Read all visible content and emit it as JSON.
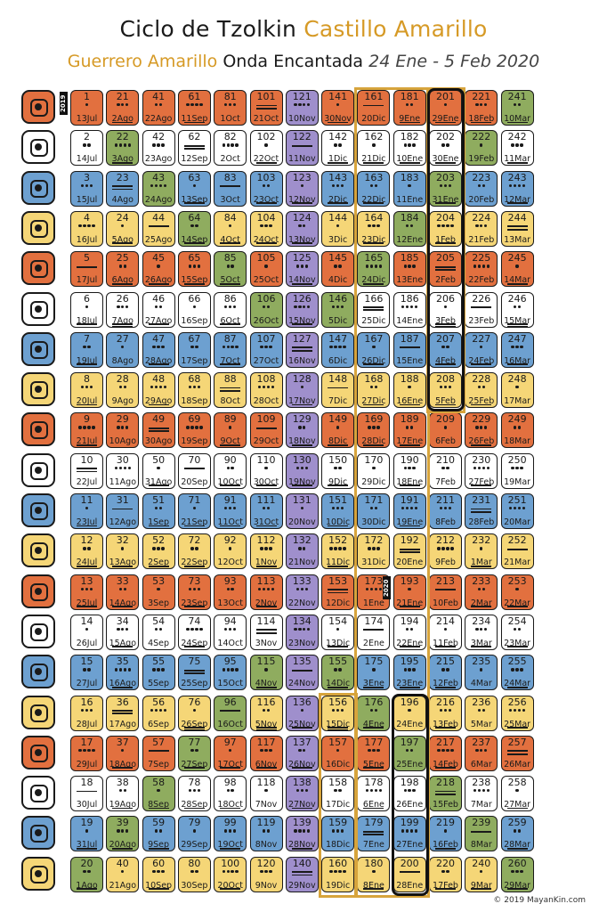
{
  "header": {
    "title_part1": "Ciclo de Tzolkin",
    "title_part2": "Castillo Amarillo",
    "subtitle_part1": "Guerrero Amarillo",
    "subtitle_part2": "Onda Encantada",
    "subtitle_dates": "24 Ene - 5 Feb 2020"
  },
  "year_labels": {
    "start": "2019",
    "change": "2020"
  },
  "copyright": "© 2019 MayanKin.com",
  "colors": {
    "red": "#e2703f",
    "white": "#ffffff",
    "blue": "#6da0d0",
    "yellow": "#f5d677",
    "green": "#8fac5f",
    "purple": "#9f8fcc",
    "highlight": "#d7a43c"
  },
  "glyph_colors": [
    "red",
    "white",
    "blue",
    "yellow",
    "red",
    "white",
    "blue",
    "yellow",
    "red",
    "white",
    "blue",
    "yellow",
    "red",
    "white",
    "blue",
    "yellow",
    "red",
    "white",
    "blue",
    "yellow"
  ],
  "dates": [
    [
      "13Jul",
      "2Ago",
      "22Ago",
      "11Sep",
      "1Oct",
      "21Oct",
      "10Nov",
      "30Nov",
      "20Dic",
      "9Ene",
      "29Ene",
      "18Feb",
      "10Mar"
    ],
    [
      "14Jul",
      "3Ago",
      "23Ago",
      "12Sep",
      "2Oct",
      "22Oct",
      "11Nov",
      "1Dic",
      "21Dic",
      "10Ene",
      "30Ene",
      "19Feb",
      "11Mar"
    ],
    [
      "15Jul",
      "4Ago",
      "24Ago",
      "13Sep",
      "3Oct",
      "23Oct",
      "12Nov",
      "2Dic",
      "22Dic",
      "11Ene",
      "31Ene",
      "20Feb",
      "12Mar"
    ],
    [
      "16Jul",
      "5Ago",
      "25Ago",
      "14Sep",
      "4Oct",
      "24Oct",
      "13Nov",
      "3Dic",
      "23Dic",
      "12Ene",
      "1Feb",
      "21Feb",
      "13Mar"
    ],
    [
      "17Jul",
      "6Ago",
      "26Ago",
      "15Sep",
      "5Oct",
      "25Oct",
      "14Nov",
      "4Dic",
      "24Dic",
      "13Ene",
      "2Feb",
      "22Feb",
      "14Mar"
    ],
    [
      "18Jul",
      "7Ago",
      "27Ago",
      "16Sep",
      "6Oct",
      "26Oct",
      "15Nov",
      "5Dic",
      "25Dic",
      "14Ene",
      "3Feb",
      "23Feb",
      "15Mar"
    ],
    [
      "19Jul",
      "8Ago",
      "28Ago",
      "17Sep",
      "7Oct",
      "27Oct",
      "16Nov",
      "6Dic",
      "26Dic",
      "15Ene",
      "4Feb",
      "24Feb",
      "16Mar"
    ],
    [
      "20Jul",
      "9Ago",
      "29Ago",
      "18Sep",
      "8Oct",
      "28Oct",
      "17Nov",
      "7Dic",
      "27Dic",
      "16Ene",
      "5Feb",
      "25Feb",
      "17Mar"
    ],
    [
      "21Jul",
      "10Ago",
      "30Ago",
      "19Sep",
      "9Oct",
      "29Oct",
      "18Nov",
      "8Dic",
      "28Dic",
      "17Ene",
      "6Feb",
      "26Feb",
      "18Mar"
    ],
    [
      "22Jul",
      "11Ago",
      "31Ago",
      "20Sep",
      "10Oct",
      "30Oct",
      "19Nov",
      "9Dic",
      "29Dic",
      "18Ene",
      "7Feb",
      "27Feb",
      "19Mar"
    ],
    [
      "23Jul",
      "12Ago",
      "1Sep",
      "21Sep",
      "11Oct",
      "31Oct",
      "20Nov",
      "10Dic",
      "30Dic",
      "19Ene",
      "8Feb",
      "28Feb",
      "20Mar"
    ],
    [
      "24Jul",
      "13Ago",
      "2Sep",
      "22Sep",
      "12Oct",
      "1Nov",
      "21Nov",
      "11Dic",
      "31Dic",
      "20Ene",
      "9Feb",
      "1Mar",
      "21Mar"
    ],
    [
      "25Jul",
      "14Ago",
      "3Sep",
      "23Sep",
      "13Oct",
      "2Nov",
      "22Nov",
      "12Dic",
      "1Ene",
      "21Ene",
      "10Feb",
      "2Mar",
      "22Mar"
    ],
    [
      "26Jul",
      "15Ago",
      "4Sep",
      "24Sep",
      "14Oct",
      "3Nov",
      "23Nov",
      "13Dic",
      "2Ene",
      "22Ene",
      "11Feb",
      "3Mar",
      "23Mar"
    ],
    [
      "27Jul",
      "16Ago",
      "5Sep",
      "25Sep",
      "15Oct",
      "4Nov",
      "24Nov",
      "14Dic",
      "3Ene",
      "23Ene",
      "12Feb",
      "4Mar",
      "24Mar"
    ],
    [
      "28Jul",
      "17Ago",
      "6Sep",
      "26Sep",
      "16Oct",
      "5Nov",
      "25Nov",
      "15Dic",
      "4Ene",
      "24Ene",
      "13Feb",
      "5Mar",
      "25Mar"
    ],
    [
      "29Jul",
      "18Ago",
      "7Sep",
      "27Sep",
      "17Oct",
      "6Nov",
      "26Nov",
      "16Dic",
      "5Ene",
      "25Ene",
      "14Feb",
      "6Mar",
      "26Mar"
    ],
    [
      "30Jul",
      "19Ago",
      "8Sep",
      "28Sep",
      "18Oct",
      "7Nov",
      "27Nov",
      "17Dic",
      "6Ene",
      "26Ene",
      "15Feb",
      "7Mar",
      "27Mar"
    ],
    [
      "31Jul",
      "20Ago",
      "9Sep",
      "29Sep",
      "19Oct",
      "8Nov",
      "28Nov",
      "18Dic",
      "7Ene",
      "27Ene",
      "16Feb",
      "8Mar",
      "28Mar"
    ],
    [
      "1Ago",
      "21Ago",
      "10Sep",
      "30Sep",
      "20Oct",
      "9Nov",
      "29Nov",
      "19Dic",
      "8Ene",
      "28Ene",
      "17Feb",
      "9Mar",
      "29Mar"
    ]
  ],
  "column_colors": [
    [
      "red",
      "white",
      "blue",
      "yellow",
      "red",
      "white",
      "blue",
      "yellow",
      "red",
      "white",
      "blue",
      "yellow",
      "red",
      "white",
      "blue",
      "yellow",
      "red",
      "white",
      "blue",
      "green"
    ],
    [
      "red",
      "green",
      "blue",
      "yellow",
      "red",
      "white",
      "blue",
      "yellow",
      "red",
      "white",
      "blue",
      "yellow",
      "red",
      "white",
      "blue",
      "yellow",
      "red",
      "white",
      "green",
      "yellow"
    ],
    [
      "red",
      "white",
      "green",
      "yellow",
      "red",
      "white",
      "blue",
      "yellow",
      "red",
      "white",
      "blue",
      "yellow",
      "red",
      "white",
      "blue",
      "yellow",
      "red",
      "green",
      "blue",
      "yellow"
    ],
    [
      "red",
      "white",
      "blue",
      "green",
      "red",
      "white",
      "blue",
      "yellow",
      "red",
      "white",
      "blue",
      "yellow",
      "red",
      "white",
      "blue",
      "yellow",
      "green",
      "white",
      "blue",
      "yellow"
    ],
    [
      "red",
      "white",
      "blue",
      "yellow",
      "green",
      "white",
      "blue",
      "yellow",
      "red",
      "white",
      "blue",
      "yellow",
      "red",
      "white",
      "blue",
      "green",
      "red",
      "white",
      "blue",
      "yellow"
    ],
    [
      "red",
      "white",
      "blue",
      "yellow",
      "red",
      "green",
      "blue",
      "yellow",
      "red",
      "white",
      "blue",
      "yellow",
      "red",
      "white",
      "green",
      "yellow",
      "red",
      "white",
      "blue",
      "yellow"
    ],
    [
      "purple",
      "purple",
      "purple",
      "purple",
      "purple",
      "purple",
      "purple",
      "purple",
      "purple",
      "purple",
      "purple",
      "purple",
      "purple",
      "purple",
      "purple",
      "purple",
      "purple",
      "purple",
      "purple",
      "purple"
    ],
    [
      "red",
      "white",
      "blue",
      "yellow",
      "red",
      "green",
      "blue",
      "yellow",
      "red",
      "white",
      "blue",
      "yellow",
      "red",
      "white",
      "green",
      "yellow",
      "red",
      "white",
      "blue",
      "yellow"
    ],
    [
      "red",
      "white",
      "blue",
      "yellow",
      "green",
      "white",
      "blue",
      "yellow",
      "red",
      "white",
      "blue",
      "yellow",
      "red",
      "white",
      "blue",
      "green",
      "red",
      "white",
      "blue",
      "yellow"
    ],
    [
      "red",
      "white",
      "blue",
      "green",
      "red",
      "white",
      "blue",
      "yellow",
      "red",
      "white",
      "blue",
      "yellow",
      "red",
      "white",
      "blue",
      "yellow",
      "green",
      "white",
      "blue",
      "yellow"
    ],
    [
      "red",
      "white",
      "green",
      "yellow",
      "red",
      "white",
      "blue",
      "yellow",
      "red",
      "white",
      "blue",
      "yellow",
      "red",
      "white",
      "blue",
      "yellow",
      "red",
      "green",
      "blue",
      "yellow"
    ],
    [
      "red",
      "green",
      "blue",
      "yellow",
      "red",
      "white",
      "blue",
      "yellow",
      "red",
      "white",
      "blue",
      "yellow",
      "red",
      "white",
      "blue",
      "yellow",
      "red",
      "white",
      "green",
      "yellow"
    ],
    [
      "green",
      "white",
      "blue",
      "yellow",
      "red",
      "white",
      "blue",
      "yellow",
      "red",
      "white",
      "blue",
      "yellow",
      "red",
      "white",
      "blue",
      "yellow",
      "red",
      "white",
      "blue",
      "green"
    ]
  ]
}
